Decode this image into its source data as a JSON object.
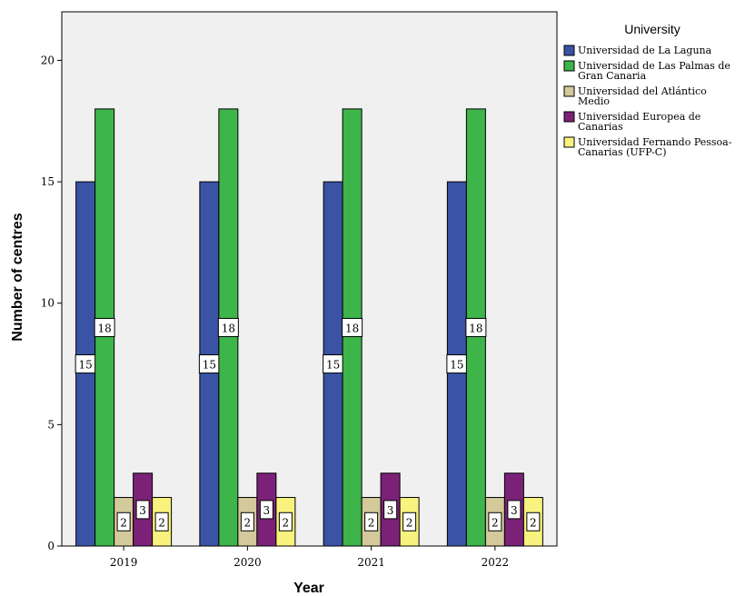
{
  "chart_data": {
    "type": "bar",
    "categories": [
      "2019",
      "2020",
      "2021",
      "2022"
    ],
    "series": [
      {
        "name": "Universidad de La Laguna",
        "values": [
          15,
          15,
          15,
          15
        ],
        "color": "#3a53a4"
      },
      {
        "name": "Universidad de Las Palmas de Gran Canaria",
        "values": [
          18,
          18,
          18,
          18
        ],
        "color": "#3db54a"
      },
      {
        "name": "Universidad del Atlántico Medio",
        "values": [
          2,
          2,
          2,
          2
        ],
        "color": "#d3c99a"
      },
      {
        "name": "Universidad Europea de Canarias",
        "values": [
          3,
          3,
          3,
          3
        ],
        "color": "#7b2278"
      },
      {
        "name": "Universidad Fernando Pessoa-Canarias (UFP-C)",
        "values": [
          2,
          2,
          2,
          2
        ],
        "color": "#f8f27e"
      }
    ],
    "legend_labels": [
      [
        "Universidad de La Laguna"
      ],
      [
        "Universidad de Las Palmas de",
        "Gran Canaria"
      ],
      [
        "Universidad del Atlántico",
        "Medio"
      ],
      [
        "Universidad Europea de",
        "Canarias"
      ],
      [
        "Universidad Fernando Pessoa-",
        "Canarias (UFP-C)"
      ]
    ],
    "legend_title": "University",
    "legend_position": "right",
    "xlabel": "Year",
    "ylabel": "Number of centres",
    "ylim": [
      0,
      20
    ],
    "yticks": [
      0,
      5,
      10,
      15,
      20
    ],
    "y_axis_max": 22,
    "data_labels": true,
    "grid": false,
    "plot_background": "#f0f0f0"
  }
}
